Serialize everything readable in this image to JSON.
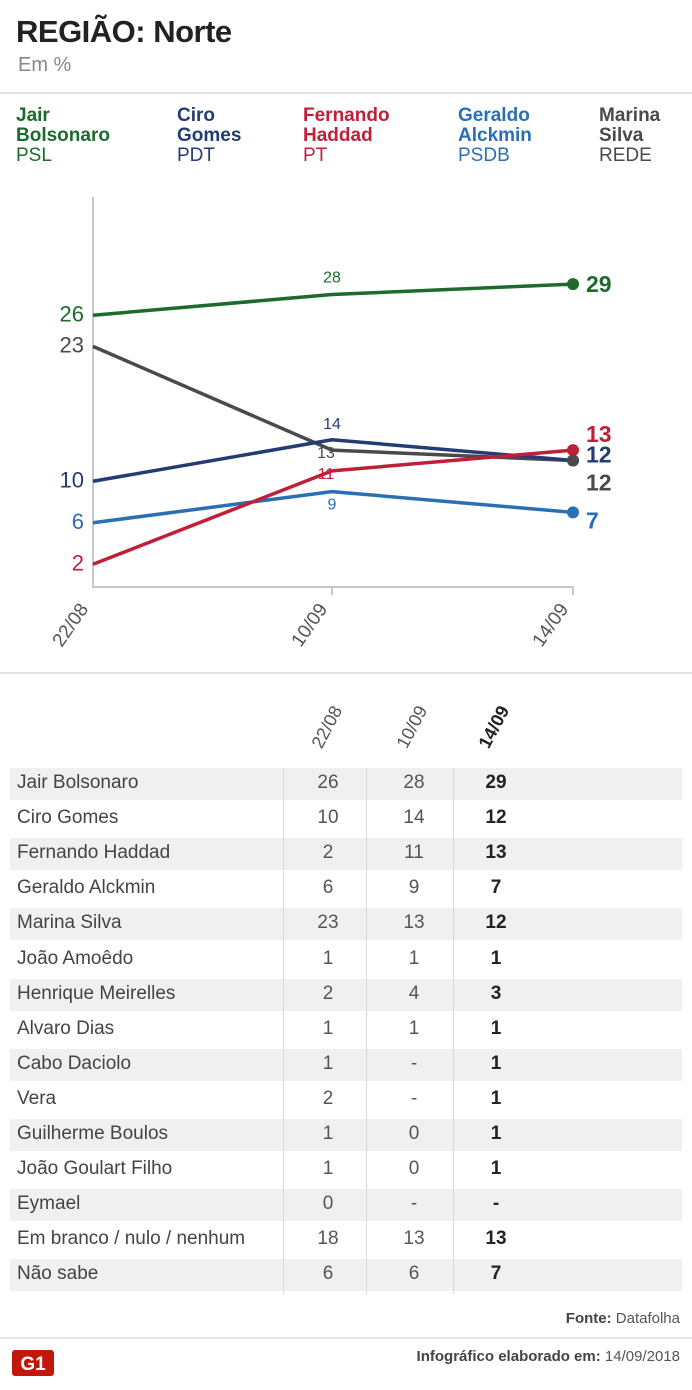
{
  "header": {
    "title": "REGIÃO: Norte",
    "subtitle": "Em %"
  },
  "legend": [
    {
      "name": "Jair\nBolsonaro",
      "party": "PSL",
      "color": "#1d6b2c"
    },
    {
      "name": "Ciro\nGomes",
      "party": "PDT",
      "color": "#233c74"
    },
    {
      "name": "Fernando\nHaddad",
      "party": "PT",
      "color": "#c01f38"
    },
    {
      "name": "Geraldo\nAlckmin",
      "party": "PSDB",
      "color": "#2a6fb3"
    },
    {
      "name": "Marina\nSilva",
      "party": "REDE",
      "color": "#4a4a4a"
    }
  ],
  "chart_data": {
    "type": "line",
    "x": [
      "22/08",
      "10/09",
      "14/09"
    ],
    "ylim": [
      0,
      32
    ],
    "series": [
      {
        "name": "Jair Bolsonaro",
        "values": [
          26,
          28,
          29
        ],
        "color": "#1d6b2c"
      },
      {
        "name": "Ciro Gomes",
        "values": [
          10,
          14,
          12
        ],
        "color": "#233c74"
      },
      {
        "name": "Fernando Haddad",
        "values": [
          2,
          11,
          13
        ],
        "color": "#c01f38"
      },
      {
        "name": "Geraldo Alckmin",
        "values": [
          6,
          9,
          7
        ],
        "color": "#2a6fb3"
      },
      {
        "name": "Marina Silva",
        "values": [
          23,
          13,
          12
        ],
        "color": "#4a4a4a"
      }
    ]
  },
  "table": {
    "columns": [
      "22/08",
      "10/09",
      "14/09"
    ],
    "rows": [
      {
        "name": "Jair Bolsonaro",
        "values": [
          "26",
          "28",
          "29"
        ]
      },
      {
        "name": "Ciro Gomes",
        "values": [
          "10",
          "14",
          "12"
        ]
      },
      {
        "name": "Fernando Haddad",
        "values": [
          "2",
          "11",
          "13"
        ]
      },
      {
        "name": "Geraldo Alckmin",
        "values": [
          "6",
          "9",
          "7"
        ]
      },
      {
        "name": "Marina Silva",
        "values": [
          "23",
          "13",
          "12"
        ]
      },
      {
        "name": "João Amoêdo",
        "values": [
          "1",
          "1",
          "1"
        ]
      },
      {
        "name": "Henrique Meirelles",
        "values": [
          "2",
          "4",
          "3"
        ]
      },
      {
        "name": "Alvaro Dias",
        "values": [
          "1",
          "1",
          "1"
        ]
      },
      {
        "name": "Cabo Daciolo",
        "values": [
          "1",
          "-",
          "1"
        ]
      },
      {
        "name": "Vera",
        "values": [
          "2",
          "-",
          "1"
        ]
      },
      {
        "name": "Guilherme Boulos",
        "values": [
          "1",
          "0",
          "1"
        ]
      },
      {
        "name": "João Goulart Filho",
        "values": [
          "1",
          "0",
          "1"
        ]
      },
      {
        "name": "Eymael",
        "values": [
          "0",
          "-",
          "-"
        ]
      },
      {
        "name": "Em branco / nulo / nenhum",
        "values": [
          "18",
          "13",
          "13"
        ]
      },
      {
        "name": "Não sabe",
        "values": [
          "6",
          "6",
          "7"
        ]
      }
    ]
  },
  "footer": {
    "source_label": "Fonte:",
    "source": "Datafolha",
    "logo": "G1",
    "note_label": "Infográfico elaborado em:",
    "note_date": "14/09/2018"
  }
}
